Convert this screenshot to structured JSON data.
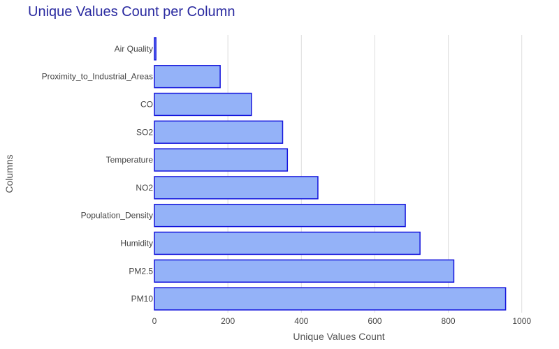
{
  "chart_data": {
    "type": "bar",
    "orientation": "horizontal",
    "title": "Unique Values Count per Column",
    "xlabel": "Unique Values Count",
    "ylabel": "Columns",
    "categories": [
      "Air Quality",
      "Proximity_to_Industrial_Areas",
      "CO",
      "SO2",
      "Temperature",
      "NO2",
      "Population_Density",
      "Humidity",
      "PM2.5",
      "PM10"
    ],
    "values": [
      4,
      179,
      264,
      349,
      362,
      445,
      683,
      723,
      815,
      956
    ],
    "xlim": [
      0,
      1050
    ],
    "xticks": [
      0,
      200,
      400,
      600,
      800,
      1000
    ],
    "grid": true,
    "colors": {
      "bar_fill": "#94b2f8",
      "bar_stroke": "#1414dc",
      "grid": "#dddddd",
      "title": "#2a2aa0"
    }
  }
}
